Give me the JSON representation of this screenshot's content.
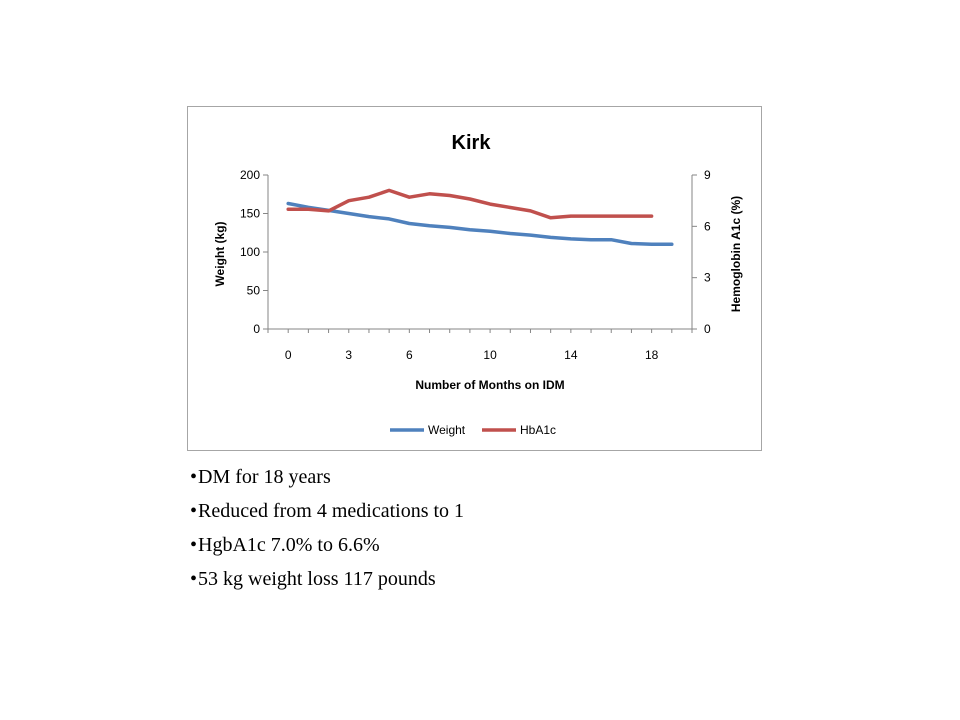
{
  "chart_data": {
    "type": "line",
    "title": "Kirk",
    "xlabel": "Number of Months on IDM",
    "ylabel": "Weight (kg)",
    "y2label": "Hemoglobin A1c (%)",
    "xlim": [
      -1,
      20
    ],
    "ylim": [
      0,
      200
    ],
    "y2lim": [
      0,
      9
    ],
    "x_ticks": [
      0,
      3,
      6,
      10,
      14,
      18
    ],
    "y_ticks": [
      0,
      50,
      100,
      150,
      200
    ],
    "y2_ticks": [
      0,
      3,
      6,
      9
    ],
    "grid": false,
    "legend": "bottom",
    "series": [
      {
        "name": "Weight",
        "axis": "left",
        "color": "#4f81bd",
        "x": [
          0,
          1,
          2,
          3,
          4,
          5,
          6,
          7,
          8,
          9,
          10,
          11,
          12,
          13,
          14,
          15,
          16,
          17,
          18,
          19
        ],
        "values": [
          163,
          158,
          154,
          150,
          146,
          143,
          137,
          134,
          132,
          129,
          127,
          124,
          122,
          119,
          117,
          116,
          116,
          111,
          110,
          110
        ]
      },
      {
        "name": "HbA1c",
        "axis": "right",
        "color": "#c0504d",
        "x": [
          0,
          1,
          2,
          3,
          4,
          5,
          6,
          7,
          8,
          9,
          10,
          11,
          12,
          13,
          14,
          15,
          16,
          17,
          18
        ],
        "values": [
          7.0,
          7.0,
          6.9,
          7.5,
          7.7,
          8.1,
          7.7,
          7.9,
          7.8,
          7.6,
          7.3,
          7.1,
          6.9,
          6.5,
          6.6,
          6.6,
          6.6,
          6.6,
          6.6
        ]
      }
    ]
  },
  "bullets": [
    "DM for 18 years",
    "Reduced from 4 medications to 1",
    "HgbA1c 7.0% to 6.6%",
    "53 kg weight loss 117 pounds"
  ]
}
